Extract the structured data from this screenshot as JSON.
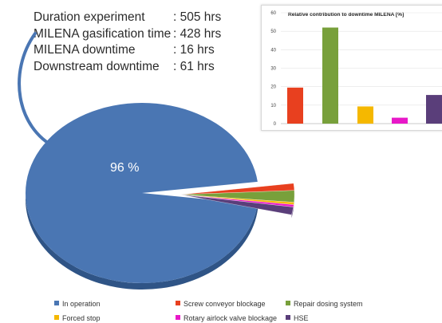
{
  "stats": [
    {
      "label": "Duration experiment",
      "value": ": 505 hrs"
    },
    {
      "label": "MILENA gasification time",
      "value": ": 428 hrs"
    },
    {
      "label": "MILENA downtime",
      "value": ": 16 hrs"
    },
    {
      "label": "Downstream downtime",
      "value": ": 61 hrs"
    }
  ],
  "colors": {
    "in_operation": "#4a76b3",
    "in_operation_side": "#2f5486",
    "arrow": "#4a76b3"
  },
  "chart_data": [
    {
      "type": "pie",
      "title": "",
      "slices": [
        {
          "label": "In operation",
          "value": 96,
          "color": "#4a76b3"
        },
        {
          "label": "Screw conveyor blockage",
          "value": 0.9,
          "color": "#e8401f"
        },
        {
          "label": "Repair dosing system",
          "value": 1.5,
          "color": "#78a03b"
        },
        {
          "label": "Forced stop",
          "value": 0.3,
          "color": "#f5b800"
        },
        {
          "label": "Rotary airlock valve blockage",
          "value": 0.3,
          "color": "#e818c8"
        },
        {
          "label": "HSE",
          "value": 1.0,
          "color": "#5a3e7a"
        }
      ],
      "data_labels": [
        {
          "text": "96 %"
        }
      ],
      "legend_position": "bottom"
    },
    {
      "type": "bar",
      "title": "Relative contribution to downtime MILENA [%]",
      "categories": [
        "Screw conveyor blockage",
        "Repair dosing system",
        "Forced stop",
        "Rotary airlock valve blockage",
        "HSE"
      ],
      "values": [
        19.5,
        52,
        9.3,
        3.2,
        15.5
      ],
      "colors": [
        "#e8401f",
        "#78a03b",
        "#f5b800",
        "#e818c8",
        "#5a3e7a"
      ],
      "ylim": [
        0,
        60
      ],
      "yticks": [
        "0",
        "10",
        "20",
        "30",
        "40",
        "50",
        "60"
      ],
      "grid": true,
      "xlabel": "",
      "ylabel": ""
    }
  ]
}
